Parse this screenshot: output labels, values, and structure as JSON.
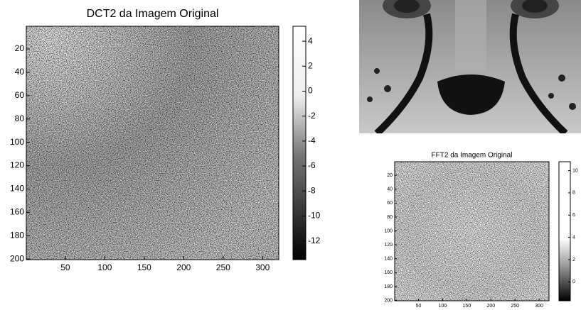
{
  "chart_data": [
    {
      "type": "image",
      "title": "DCT2 da Imagem Original",
      "xlim": [
        0.5,
        320.5
      ],
      "xticks": [
        50,
        100,
        150,
        200,
        250,
        300
      ],
      "ylim": [
        0.5,
        200.5
      ],
      "yticks": [
        20,
        40,
        60,
        80,
        100,
        120,
        140,
        160,
        180,
        200
      ],
      "y_reversed": true,
      "colorbar": {
        "clim": [
          -13.5,
          5.2
        ],
        "ticks": [
          4,
          2,
          0,
          -2,
          -4,
          -6,
          -8,
          -10,
          -12
        ]
      }
    },
    {
      "type": "image",
      "title": "FFT2 da Imagem Original",
      "xlim": [
        0.5,
        320.5
      ],
      "xticks": [
        50,
        100,
        150,
        200,
        250,
        300
      ],
      "ylim": [
        0.5,
        200.5
      ],
      "yticks": [
        20,
        40,
        60,
        80,
        100,
        120,
        140,
        160,
        180,
        200
      ],
      "y_reversed": true,
      "colorbar": {
        "clim": [
          -1.7,
          10.8
        ],
        "ticks": [
          0,
          2,
          4,
          6,
          8,
          10
        ]
      }
    }
  ]
}
